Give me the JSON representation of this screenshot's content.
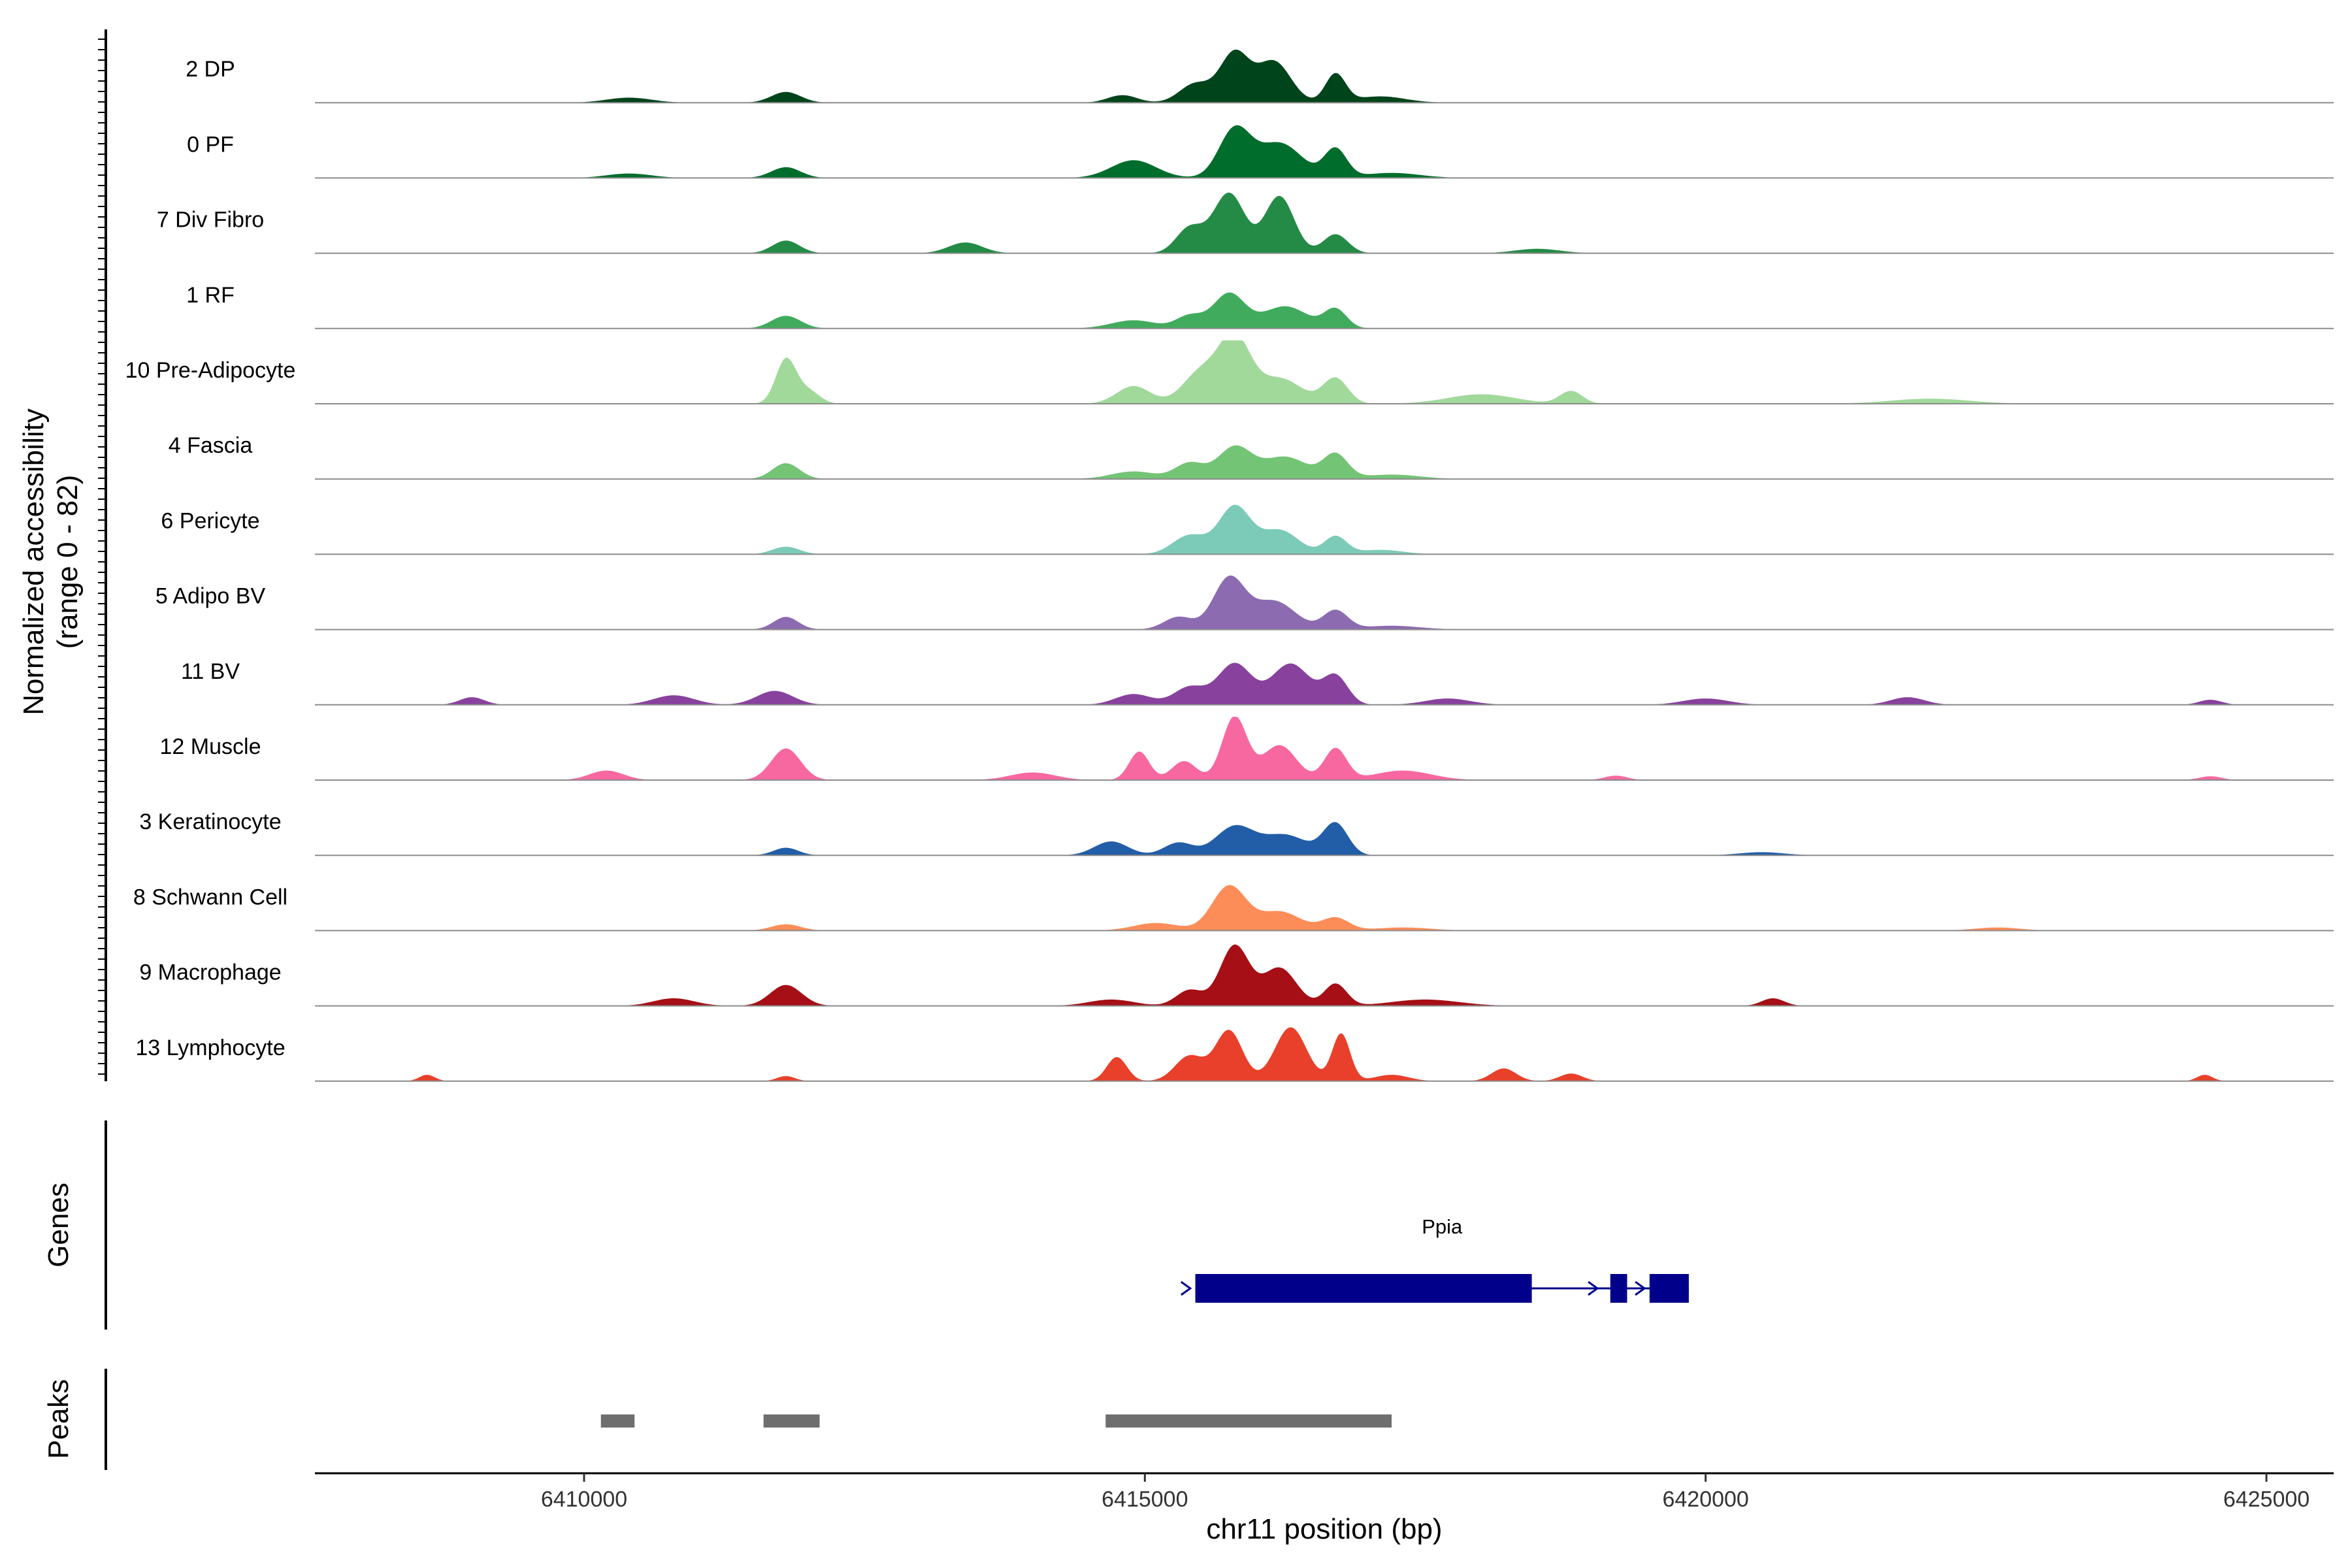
{
  "chart_data": {
    "type": "area",
    "title": "",
    "ylabel_line1": "Normalized accessibility",
    "ylabel_line2": "(range 0 - 82)",
    "y_range": [
      0,
      82
    ],
    "xlabel": "chr11 position (bp)",
    "xlim": [
      6407600,
      6425600
    ],
    "x_ticks": [
      6410000,
      6415000,
      6420000,
      6425000
    ],
    "x_tick_labels": [
      "6410000",
      "6415000",
      "6420000",
      "6425000"
    ],
    "track_labels": {
      "genes": "Genes",
      "peaks": "Peaks"
    },
    "series": [
      {
        "name": "2 DP",
        "color": "#00441b",
        "peaks": [
          [
            6410400,
            0.08,
            200
          ],
          [
            6411800,
            0.17,
            130
          ],
          [
            6414800,
            0.12,
            130
          ],
          [
            6415450,
            0.3,
            140
          ],
          [
            6415800,
            0.78,
            130
          ],
          [
            6416150,
            0.65,
            150
          ],
          [
            6416700,
            0.45,
            90
          ],
          [
            6417100,
            0.1,
            220
          ]
        ]
      },
      {
        "name": "0 PF",
        "color": "#006d2c",
        "peaks": [
          [
            6410400,
            0.07,
            200
          ],
          [
            6411800,
            0.17,
            130
          ],
          [
            6414900,
            0.28,
            200
          ],
          [
            6415800,
            0.75,
            140
          ],
          [
            6416200,
            0.55,
            200
          ],
          [
            6416700,
            0.45,
            100
          ],
          [
            6417200,
            0.08,
            250
          ]
        ]
      },
      {
        "name": "7 Div Fibro",
        "color": "#238b45",
        "peaks": [
          [
            6411800,
            0.2,
            120
          ],
          [
            6413400,
            0.17,
            150
          ],
          [
            6415400,
            0.4,
            120
          ],
          [
            6415750,
            0.95,
            140
          ],
          [
            6416200,
            0.9,
            130
          ],
          [
            6416700,
            0.3,
            110
          ],
          [
            6418500,
            0.07,
            200
          ]
        ]
      },
      {
        "name": "1 RF",
        "color": "#41ab5d",
        "peaks": [
          [
            6411800,
            0.2,
            130
          ],
          [
            6414900,
            0.13,
            200
          ],
          [
            6415400,
            0.2,
            120
          ],
          [
            6415750,
            0.55,
            140
          ],
          [
            6416250,
            0.35,
            200
          ],
          [
            6416700,
            0.3,
            100
          ]
        ]
      },
      {
        "name": "10 Pre-Adipocyte",
        "color": "#a1d99b",
        "peaks": [
          [
            6411800,
            0.7,
            90
          ],
          [
            6412000,
            0.2,
            100
          ],
          [
            6414900,
            0.28,
            150
          ],
          [
            6415500,
            0.5,
            160
          ],
          [
            6415800,
            1.0,
            140
          ],
          [
            6416200,
            0.4,
            200
          ],
          [
            6416700,
            0.4,
            110
          ],
          [
            6418000,
            0.15,
            300
          ],
          [
            6418800,
            0.2,
            100
          ],
          [
            6422000,
            0.08,
            350
          ]
        ]
      },
      {
        "name": "4 Fascia",
        "color": "#74c476",
        "peaks": [
          [
            6411800,
            0.25,
            120
          ],
          [
            6414900,
            0.12,
            200
          ],
          [
            6415400,
            0.25,
            130
          ],
          [
            6415800,
            0.5,
            150
          ],
          [
            6416250,
            0.35,
            200
          ],
          [
            6416700,
            0.38,
            110
          ],
          [
            6417200,
            0.07,
            250
          ]
        ]
      },
      {
        "name": "6 Pericyte",
        "color": "#7ccbb8",
        "peaks": [
          [
            6411800,
            0.12,
            120
          ],
          [
            6415400,
            0.3,
            150
          ],
          [
            6415800,
            0.75,
            140
          ],
          [
            6416200,
            0.38,
            170
          ],
          [
            6416700,
            0.28,
            100
          ],
          [
            6417100,
            0.07,
            200
          ]
        ]
      },
      {
        "name": "5 Adipo BV",
        "color": "#8c6bb1",
        "peaks": [
          [
            6411800,
            0.2,
            110
          ],
          [
            6415300,
            0.2,
            130
          ],
          [
            6415750,
            0.8,
            140
          ],
          [
            6416150,
            0.45,
            190
          ],
          [
            6416700,
            0.3,
            110
          ],
          [
            6417200,
            0.06,
            250
          ]
        ]
      },
      {
        "name": "11 BV",
        "color": "#88419d",
        "peaks": [
          [
            6409000,
            0.12,
            110
          ],
          [
            6410800,
            0.15,
            180
          ],
          [
            6411700,
            0.22,
            160
          ],
          [
            6414900,
            0.17,
            160
          ],
          [
            6415400,
            0.28,
            140
          ],
          [
            6415800,
            0.65,
            150
          ],
          [
            6416300,
            0.65,
            170
          ],
          [
            6416700,
            0.45,
            110
          ],
          [
            6417700,
            0.1,
            200
          ],
          [
            6420000,
            0.1,
            200
          ],
          [
            6421800,
            0.12,
            150
          ],
          [
            6424500,
            0.08,
            100
          ]
        ]
      },
      {
        "name": "12 Muscle",
        "color": "#f768a1",
        "peaks": [
          [
            6410200,
            0.15,
            150
          ],
          [
            6411800,
            0.5,
            130
          ],
          [
            6414000,
            0.12,
            200
          ],
          [
            6414950,
            0.45,
            90
          ],
          [
            6415350,
            0.3,
            110
          ],
          [
            6415800,
            1.0,
            110
          ],
          [
            6416200,
            0.55,
            150
          ],
          [
            6416700,
            0.5,
            100
          ],
          [
            6417300,
            0.15,
            250
          ],
          [
            6419200,
            0.07,
            100
          ],
          [
            6424500,
            0.06,
            100
          ]
        ]
      },
      {
        "name": "3 Keratinocyte",
        "color": "#225ea8",
        "peaks": [
          [
            6411800,
            0.12,
            110
          ],
          [
            6414700,
            0.22,
            150
          ],
          [
            6415300,
            0.2,
            130
          ],
          [
            6415800,
            0.45,
            170
          ],
          [
            6416250,
            0.32,
            200
          ],
          [
            6416700,
            0.5,
            110
          ],
          [
            6420500,
            0.05,
            200
          ]
        ]
      },
      {
        "name": "8 Schwann Cell",
        "color": "#fc8d59",
        "peaks": [
          [
            6411800,
            0.1,
            130
          ],
          [
            6415100,
            0.12,
            200
          ],
          [
            6415750,
            0.7,
            150
          ],
          [
            6416200,
            0.3,
            190
          ],
          [
            6416700,
            0.2,
            120
          ],
          [
            6417300,
            0.05,
            250
          ],
          [
            6422600,
            0.05,
            200
          ]
        ]
      },
      {
        "name": "9 Macrophage",
        "color": "#a50f15",
        "peaks": [
          [
            6410800,
            0.12,
            180
          ],
          [
            6411800,
            0.33,
            140
          ],
          [
            6414700,
            0.1,
            200
          ],
          [
            6415400,
            0.25,
            120
          ],
          [
            6415800,
            0.95,
            130
          ],
          [
            6416200,
            0.6,
            150
          ],
          [
            6416700,
            0.35,
            100
          ],
          [
            6417500,
            0.1,
            300
          ],
          [
            6420600,
            0.12,
            100
          ]
        ]
      },
      {
        "name": "13 Lymphocyte",
        "color": "#e8402a",
        "peaks": [
          [
            6408600,
            0.1,
            70
          ],
          [
            6411800,
            0.08,
            80
          ],
          [
            6414750,
            0.38,
            90
          ],
          [
            6415400,
            0.4,
            130
          ],
          [
            6415750,
            0.8,
            120
          ],
          [
            6416300,
            0.85,
            140
          ],
          [
            6416750,
            0.75,
            80
          ],
          [
            6417200,
            0.1,
            150
          ],
          [
            6418200,
            0.2,
            110
          ],
          [
            6418800,
            0.12,
            100
          ],
          [
            6424450,
            0.1,
            70
          ]
        ]
      }
    ],
    "genes": [
      {
        "name": "Ppia",
        "color": "#00008b",
        "start": 6415450,
        "end": 6419850,
        "exons": [
          [
            6415450,
            6418450
          ],
          [
            6419150,
            6419300
          ],
          [
            6419500,
            6419850
          ]
        ]
      }
    ],
    "peak_regions": {
      "color": "#6e6e6e",
      "regions": [
        [
          6410150,
          6410450
        ],
        [
          6411600,
          6412100
        ],
        [
          6414650,
          6417200
        ]
      ]
    }
  }
}
